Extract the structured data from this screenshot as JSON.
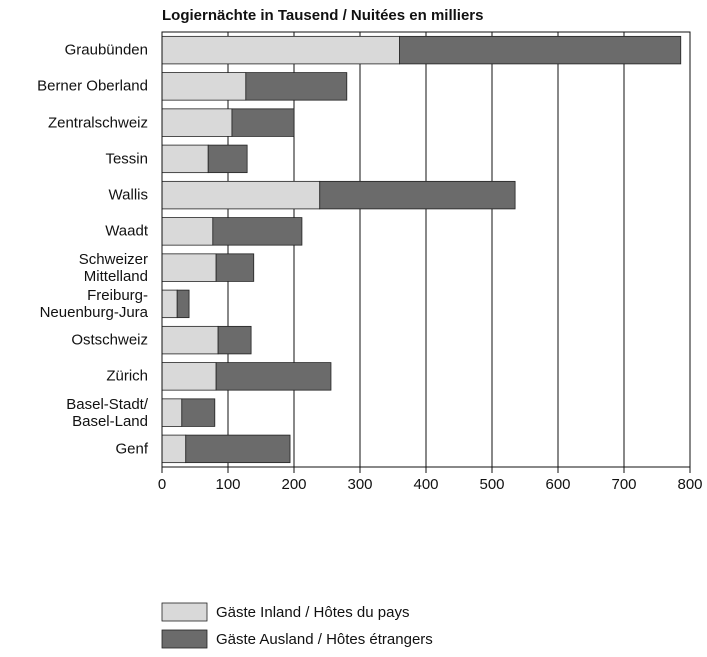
{
  "chart_data": {
    "type": "stacked-bar-horizontal",
    "title": "Logiernächte in Tausend / Nuitées en milliers",
    "categories": [
      "Graubünden",
      "Berner Oberland",
      "Zentralschweiz",
      "Tessin",
      "Wallis",
      "Waadt",
      "Schweizer\nMittelland",
      "Freiburg-\nNeuenburg-Jura",
      "Ostschweiz",
      "Zürich",
      "Basel-Stadt/\nBasel-Land",
      "Genf"
    ],
    "series": [
      {
        "name": "Gäste Inland / Hôtes du pays",
        "color": "#d9d9d9",
        "values": [
          360,
          127,
          106,
          70,
          239,
          77,
          82,
          23,
          85,
          82,
          30,
          36
        ]
      },
      {
        "name": "Gäste Ausland / Hôtes étrangers",
        "color": "#6b6b6b",
        "values": [
          426,
          153,
          94,
          59,
          296,
          135,
          57,
          18,
          50,
          174,
          50,
          158
        ]
      }
    ],
    "xlim": [
      0,
      800
    ],
    "xticks": [
      0,
      100,
      200,
      300,
      400,
      500,
      600,
      700,
      800
    ],
    "grid": true
  }
}
